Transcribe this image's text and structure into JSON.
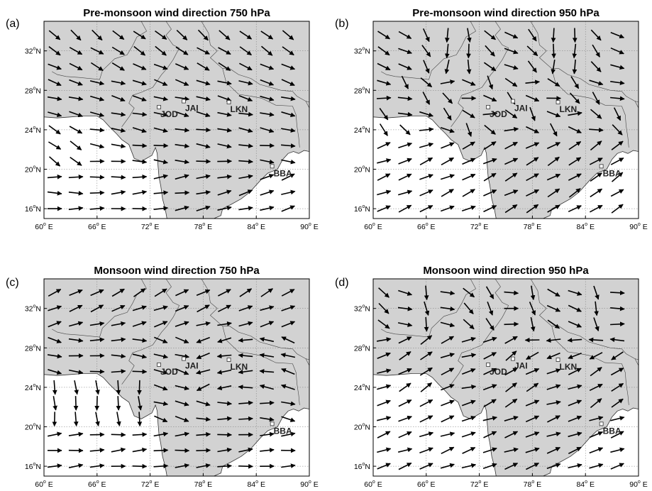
{
  "panels": [
    {
      "id": "a",
      "label": "(a)",
      "title": "Pre-monsoon wind direction 750 hPa",
      "season": "pre-monsoon",
      "level_hpa": 750
    },
    {
      "id": "b",
      "label": "(b)",
      "title": "Pre-monsoon wind direction 950 hPa",
      "season": "pre-monsoon",
      "level_hpa": 950
    },
    {
      "id": "c",
      "label": "(c)",
      "title": "Monsoon wind direction 750 hPa",
      "season": "monsoon",
      "level_hpa": 750
    },
    {
      "id": "d",
      "label": "(d)",
      "title": "Monsoon wind direction 950 hPa",
      "season": "monsoon",
      "level_hpa": 950
    }
  ],
  "axes": {
    "lon_range": [
      60,
      90
    ],
    "lat_range": [
      15,
      35
    ],
    "lon_ticks": [
      {
        "value": 60,
        "deg": "60",
        "suffix": "E"
      },
      {
        "value": 66,
        "deg": "66",
        "suffix": "E"
      },
      {
        "value": 72,
        "deg": "72",
        "suffix": "E"
      },
      {
        "value": 78,
        "deg": "78",
        "suffix": "E"
      },
      {
        "value": 84,
        "deg": "84",
        "suffix": "E"
      },
      {
        "value": 90,
        "deg": "90",
        "suffix": "E"
      }
    ],
    "lat_ticks": [
      {
        "value": 16,
        "deg": "16",
        "suffix": "N"
      },
      {
        "value": 20,
        "deg": "20",
        "suffix": "N"
      },
      {
        "value": 24,
        "deg": "24",
        "suffix": "N"
      },
      {
        "value": 28,
        "deg": "28",
        "suffix": "N"
      },
      {
        "value": 32,
        "deg": "32",
        "suffix": "N"
      }
    ],
    "grid": true
  },
  "stations": [
    {
      "name": "JOD",
      "lon": 73.0,
      "lat": 26.3
    },
    {
      "name": "JAI",
      "lon": 75.8,
      "lat": 26.9
    },
    {
      "name": "LKN",
      "lon": 80.9,
      "lat": 26.8
    },
    {
      "name": "BBA",
      "lon": 85.8,
      "lat": 20.3
    }
  ],
  "colors": {
    "land": "#d2d2d2",
    "sea": "#ffffff",
    "arrow": "#000000"
  }
}
